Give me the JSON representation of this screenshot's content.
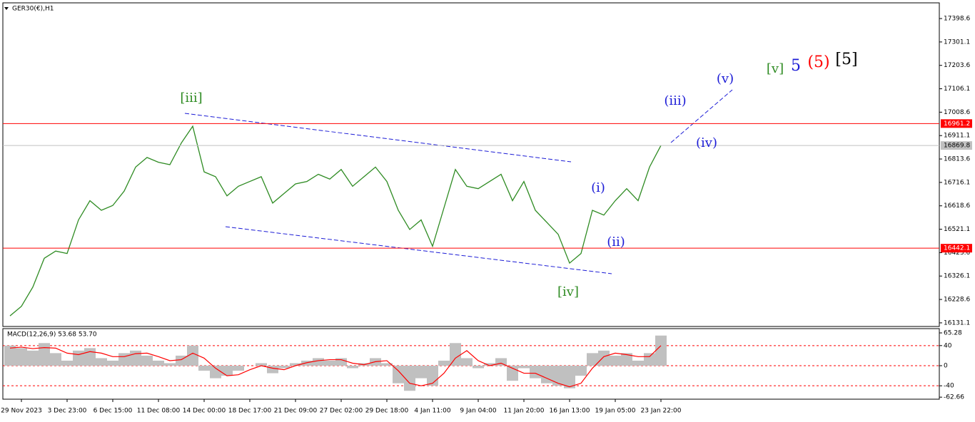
{
  "chart_data": [
    {
      "type": "line",
      "title": "GER30(€),H1",
      "categories": [
        null,
        "29 Nov 2023",
        null,
        null,
        null,
        "3 Dec 23:00",
        null,
        null,
        null,
        "6 Dec 15:00",
        null,
        null,
        null,
        "11 Dec 08:00",
        null,
        null,
        null,
        "14 Dec 00:00",
        null,
        null,
        null,
        "18 Dec 17:00",
        null,
        null,
        null,
        "21 Dec 09:00",
        null,
        null,
        null,
        "27 Dec 02:00",
        null,
        null,
        null,
        "29 Dec 18:00",
        null,
        null,
        null,
        "4 Jan 11:00",
        null,
        null,
        null,
        "9 Jan 04:00",
        null,
        null,
        null,
        "11 Jan 20:00",
        null,
        null,
        null,
        "16 Jan 13:00",
        null,
        null,
        null,
        "19 Jan 05:00",
        null,
        null,
        null,
        "23 Jan 22:00"
      ],
      "values": [
        16160,
        16200,
        16280,
        16400,
        16430,
        16420,
        16560,
        16640,
        16600,
        16620,
        16680,
        16780,
        16820,
        16800,
        16790,
        16880,
        16950,
        16760,
        16740,
        16660,
        16700,
        16720,
        16740,
        16630,
        16670,
        16710,
        16720,
        16750,
        16730,
        16770,
        16700,
        16740,
        16780,
        16720,
        16600,
        16520,
        16560,
        16450,
        16610,
        16770,
        16700,
        16690,
        16720,
        16750,
        16640,
        16720,
        16600,
        16550,
        16500,
        16380,
        16420,
        16600,
        16580,
        16640,
        16690,
        16640,
        16780,
        16870
      ],
      "color": "#2e8b22",
      "ylim": [
        16116,
        17464
      ],
      "yticks": [
        {
          "value": 17398.6,
          "label": "17398.6"
        },
        {
          "value": 17301.1,
          "label": "17301.1"
        },
        {
          "value": 17203.6,
          "label": "17203.6"
        },
        {
          "value": 17106.1,
          "label": "17106.1"
        },
        {
          "value": 17008.6,
          "label": "17008.6"
        },
        {
          "value": 16911.1,
          "label": "16911.1"
        },
        {
          "value": 16813.6,
          "label": "16813.6"
        },
        {
          "value": 16716.1,
          "label": "16716.1"
        },
        {
          "value": 16618.6,
          "label": "16618.6"
        },
        {
          "value": 16521.1,
          "label": "16521.1"
        },
        {
          "value": 16423.6,
          "label": "16423.6"
        },
        {
          "value": 16326.1,
          "label": "16326.1"
        },
        {
          "value": 16228.6,
          "label": "16228.6"
        },
        {
          "value": 16131.1,
          "label": "16131.1"
        }
      ],
      "levels": [
        {
          "value": 16961.2,
          "color": "#ff0000"
        },
        {
          "value": 16869.8,
          "color": "#c0c0c0"
        },
        {
          "value": 16442.1,
          "color": "#ff0000"
        }
      ],
      "annotations": [
        {
          "text": "[iii]",
          "color": "#2e8b22"
        },
        {
          "text": "[iv]",
          "color": "#2e8b22"
        },
        {
          "text": "(i)",
          "color": "#1c1cd6"
        },
        {
          "text": "(ii)",
          "color": "#1c1cd6"
        },
        {
          "text": "(iii)",
          "color": "#1c1cd6"
        },
        {
          "text": "(iv)",
          "color": "#1c1cd6"
        },
        {
          "text": "(v)",
          "color": "#1c1cd6"
        },
        {
          "text": "[v]",
          "color": "#2e8b22"
        },
        {
          "text": "5",
          "color": "#1c1cd6"
        },
        {
          "text": "(5)",
          "color": "#ff0000"
        },
        {
          "text": "[5]",
          "color": "#000000"
        }
      ]
    },
    {
      "type": "bar",
      "title": "MACD(12,26,9) 53.68 53.70",
      "values": [
        40,
        35,
        30,
        45,
        25,
        10,
        30,
        35,
        15,
        10,
        25,
        30,
        20,
        10,
        5,
        20,
        40,
        -10,
        -25,
        -20,
        -10,
        0,
        5,
        -15,
        -5,
        5,
        10,
        15,
        10,
        15,
        -5,
        5,
        15,
        5,
        -35,
        -50,
        -25,
        -40,
        10,
        45,
        15,
        -5,
        5,
        15,
        -30,
        -5,
        -25,
        -35,
        -40,
        -45,
        -20,
        25,
        30,
        20,
        25,
        10,
        25,
        60
      ],
      "color": "#c0c0c0",
      "signal": {
        "values": [
          35,
          37,
          34,
          36,
          35,
          25,
          22,
          28,
          25,
          18,
          18,
          24,
          25,
          18,
          10,
          12,
          25,
          15,
          -5,
          -20,
          -18,
          -8,
          0,
          -5,
          -8,
          0,
          6,
          10,
          12,
          12,
          5,
          2,
          8,
          10,
          -10,
          -35,
          -40,
          -35,
          -15,
          15,
          30,
          10,
          0,
          5,
          -5,
          -15,
          -15,
          -25,
          -35,
          -42,
          -35,
          -5,
          18,
          25,
          22,
          18,
          18,
          40
        ],
        "color": "#ff0000"
      },
      "ylim": [
        -66.7,
        73.8
      ],
      "yticks": [
        65.28,
        40,
        0,
        -40,
        -62.66
      ]
    }
  ]
}
